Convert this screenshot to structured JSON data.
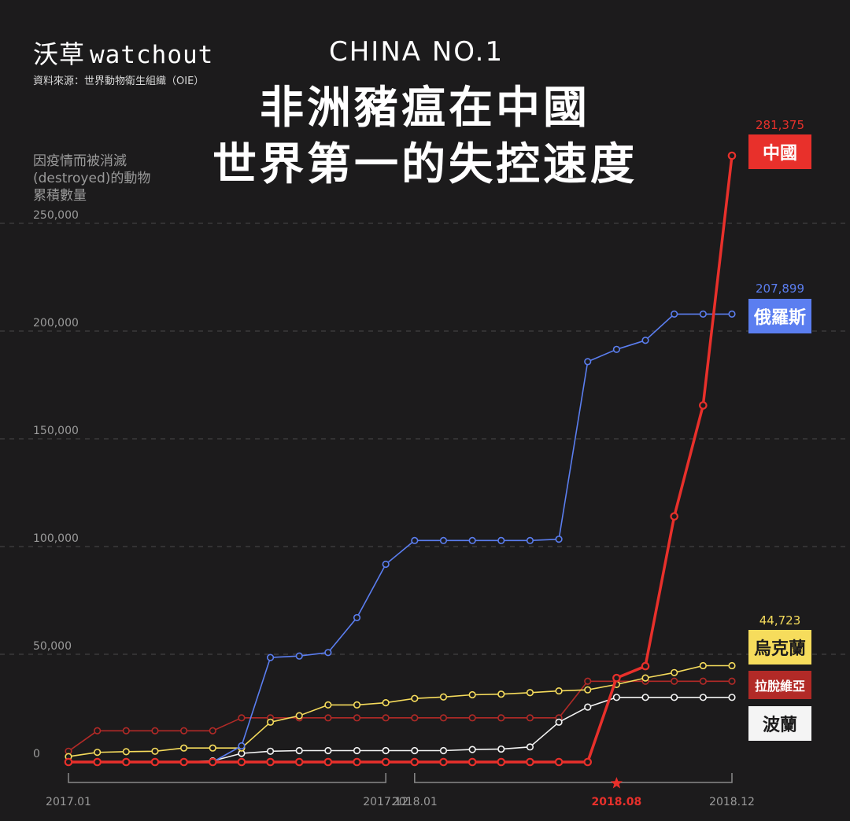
{
  "header": {
    "logo_cn": "沃草",
    "logo_en": "watchout",
    "source": "資料來源：世界動物衛生組織（OIE）",
    "subtitle": "CHINA NO.1",
    "title_line1": "非洲豬瘟在中國",
    "title_line2": "世界第一的失控速度",
    "y_axis_label": "因疫情而被消滅(destroyed)的動物累積數量"
  },
  "colors": {
    "background": "#1c1b1c",
    "china": "#e8302b",
    "russia": "#5b7ef0",
    "ukraine": "#f6dc5c",
    "latvia": "#b22a27",
    "poland": "#f4f4f4",
    "grid": "#4a4a4a",
    "axis_text": "#9a9a9a"
  },
  "chart_data": {
    "type": "line",
    "ylim": [
      0,
      281375
    ],
    "yticks": [
      0,
      50000,
      100000,
      150000,
      200000,
      250000
    ],
    "ytick_labels": [
      "0",
      "50,000",
      "100,000",
      "150,000",
      "200,000",
      "250,000"
    ],
    "x_count": 24,
    "x_labels": [
      {
        "index": 0,
        "label": "2017.01"
      },
      {
        "index": 11,
        "label": "2017.12"
      },
      {
        "index": 12,
        "label": "2018.01"
      },
      {
        "index": 19,
        "label": "2018.08",
        "highlight": true
      },
      {
        "index": 23,
        "label": "2018.12"
      }
    ],
    "brackets": [
      [
        0,
        11
      ],
      [
        12,
        23
      ]
    ],
    "star_index": 19,
    "grid": true,
    "series": [
      {
        "name": "拉脫維亞",
        "key": "latvia",
        "end_label": "",
        "values": [
          5000,
          14500,
          14500,
          14500,
          14500,
          14500,
          20500,
          20500,
          20500,
          20500,
          20500,
          20500,
          20500,
          20500,
          20500,
          20500,
          20500,
          20500,
          37500,
          37500,
          37500,
          37500,
          37500,
          37500
        ]
      },
      {
        "name": "波蘭",
        "key": "poland",
        "end_label": "",
        "values": [
          0,
          0,
          0,
          0,
          0,
          500,
          4000,
          5000,
          5300,
          5300,
          5300,
          5300,
          5300,
          5300,
          5800,
          6000,
          7000,
          18500,
          25500,
          30000,
          30000,
          30000,
          30000,
          30000
        ]
      },
      {
        "name": "烏克蘭",
        "key": "ukraine",
        "end_label": "44,723",
        "values": [
          2500,
          4500,
          4800,
          5000,
          6500,
          6500,
          6500,
          18500,
          21500,
          26500,
          26500,
          27500,
          29500,
          30200,
          31200,
          31500,
          32200,
          33000,
          33500,
          36000,
          39000,
          41500,
          44723,
          44723
        ]
      },
      {
        "name": "俄羅斯",
        "key": "russia",
        "end_label": "207,899",
        "values": [
          0,
          0,
          0,
          0,
          0,
          0,
          7500,
          48500,
          49200,
          50800,
          67000,
          91800,
          102800,
          102800,
          102800,
          102800,
          102800,
          103400,
          185800,
          191500,
          195700,
          207899,
          207899,
          207899
        ]
      },
      {
        "name": "中國",
        "key": "china",
        "end_label": "281,375",
        "values": [
          0,
          0,
          0,
          0,
          0,
          0,
          0,
          0,
          0,
          0,
          0,
          0,
          0,
          0,
          0,
          0,
          0,
          0,
          0,
          39000,
          44500,
          114000,
          165500,
          281375
        ]
      }
    ]
  }
}
